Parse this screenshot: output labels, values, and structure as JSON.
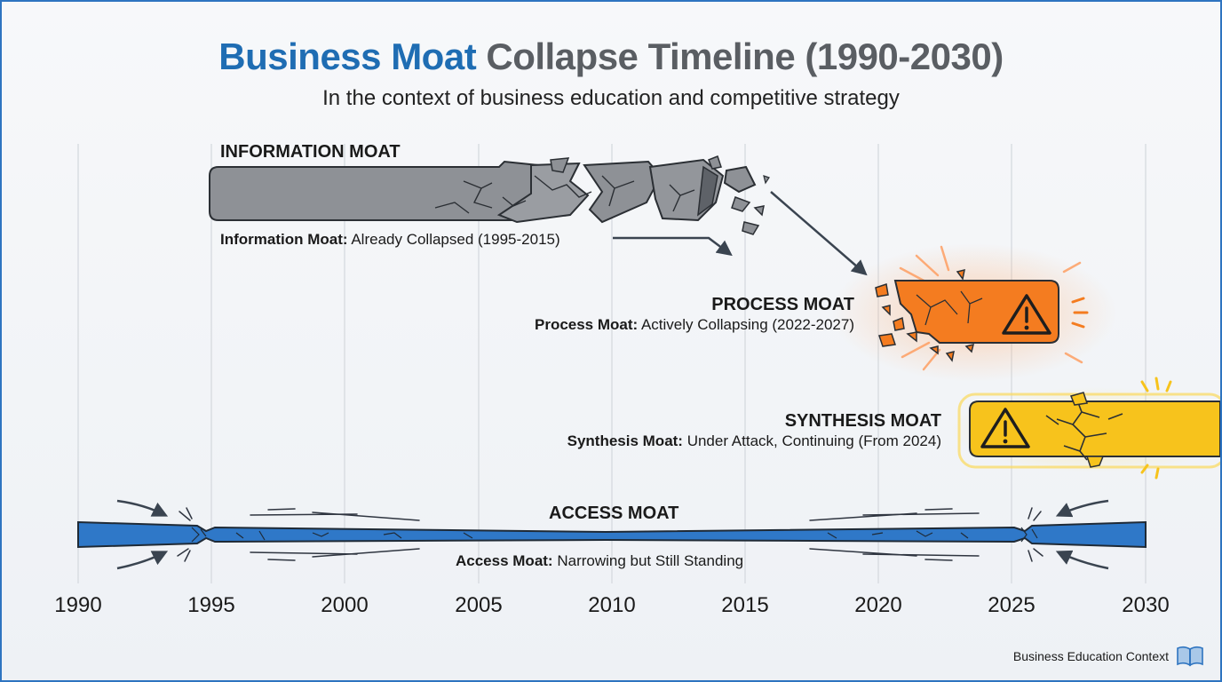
{
  "title": {
    "accent": "Business Moat",
    "rest": " Collapse Timeline (1990-2030)"
  },
  "subtitle": "In the context of business education and competitive strategy",
  "timeline": {
    "years": [
      "1990",
      "1995",
      "2000",
      "2005",
      "2010",
      "2015",
      "2020",
      "2025",
      "2030"
    ],
    "start": 1990,
    "end": 2030
  },
  "moats": {
    "information": {
      "title": "INFORMATION MOAT",
      "desc_bold": "Information Moat:",
      "desc_rest": " Already Collapsed (1995-2015)",
      "start": 1995,
      "end": 2015,
      "status": "collapsed",
      "color": "#8e9196"
    },
    "process": {
      "title": "PROCESS MOAT",
      "desc_bold": "Process Moat:",
      "desc_rest": " Actively Collapsing (2022-2027)",
      "start": 2022,
      "end": 2027,
      "status": "collapsing",
      "color": "#f47c20"
    },
    "synthesis": {
      "title": "SYNTHESIS MOAT",
      "desc_bold": "Synthesis Moat:",
      "desc_rest": " Under Attack, Continuing (From 2024)",
      "start": 2024,
      "status": "under-attack",
      "color": "#f7c31c"
    },
    "access": {
      "title": "ACCESS MOAT",
      "desc_bold": "Access Moat:",
      "desc_rest": " Narrowing but Still Standing",
      "start": 1990,
      "end": 2030,
      "status": "standing",
      "color": "#2f78c8"
    }
  },
  "icons": {
    "warning": "warning-triangle-icon",
    "book": "open-book-icon"
  },
  "footer": "Business Education Context"
}
